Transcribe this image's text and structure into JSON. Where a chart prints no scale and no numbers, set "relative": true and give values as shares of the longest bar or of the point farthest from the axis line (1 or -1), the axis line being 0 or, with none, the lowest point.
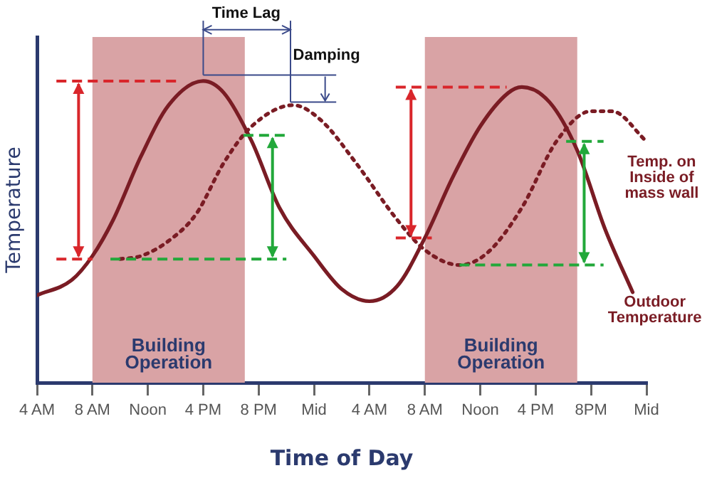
{
  "chart_data": {
    "type": "line",
    "xlabel": "Time of Day",
    "ylabel": "Temperature",
    "relative": true,
    "xlim": [
      "--01-01T04:00",
      "--01-03T00:00"
    ],
    "xticks": [
      {
        "value": "--01-01T04:00",
        "label": "4 AM"
      },
      {
        "value": "--01-01T08:00",
        "label": "8 AM"
      },
      {
        "value": "--01-01T12:00",
        "label": "Noon"
      },
      {
        "value": "--01-01T16:00",
        "label": "4 PM"
      },
      {
        "value": "--01-01T20:00",
        "label": "8 PM"
      },
      {
        "value": "--01-02T00:00",
        "label": "Mid"
      },
      {
        "value": "--01-02T04:00",
        "label": "4 AM"
      },
      {
        "value": "--01-02T08:00",
        "label": "8 AM"
      },
      {
        "value": "--01-02T12:00",
        "label": "Noon"
      },
      {
        "value": "--01-02T16:00",
        "label": "4 PM"
      },
      {
        "value": "--01-02T20:00",
        "label": "8PM"
      },
      {
        "value": "--01-03T00:00",
        "label": "Mid"
      }
    ],
    "series": [
      {
        "name": "Outdoor Temperature",
        "color": "#7a1c24",
        "line_style": "solid",
        "x": [
          "--01-01T04:00",
          "--01-01T06:30",
          "--01-01T08:00",
          "--01-01T09:30",
          "--01-01T11:30",
          "--01-01T13:30",
          "--01-01T16:00",
          "--01-01T17:30",
          "--01-01T19:30",
          "--01-01T21:30",
          "--01-02T00:00",
          "--01-02T02:00",
          "--01-02T04:00",
          "--01-02T06:00",
          "--01-02T08:00",
          "--01-02T10:00",
          "--01-02T12:00",
          "--01-02T14:00",
          "--01-02T15:00",
          "--01-02T17:00",
          "--01-02T19:00",
          "--01-02T21:00",
          "--01-02T23:00"
        ],
        "values": [
          0.29,
          0.34,
          0.42,
          0.54,
          0.75,
          0.92,
          1.0,
          0.96,
          0.8,
          0.58,
          0.42,
          0.31,
          0.27,
          0.32,
          0.48,
          0.68,
          0.85,
          0.96,
          0.98,
          0.93,
          0.77,
          0.51,
          0.3
        ]
      },
      {
        "name": "Temp. on Inside of mass wall",
        "color": "#7a1c24",
        "line_style": "dotted",
        "x": [
          "--01-01T10:00",
          "--01-01T11:30",
          "--01-01T13:30",
          "--01-01T15:30",
          "--01-01T17:30",
          "--01-01T19:30",
          "--01-01T22:30",
          "--01-02T00:30",
          "--01-02T03:00",
          "--01-02T06:00",
          "--01-02T08:00",
          "--01-02T10:30",
          "--01-02T12:30",
          "--01-02T15:00",
          "--01-02T17:30",
          "--01-02T20:00",
          "--01-02T21:30",
          "--01-03T00:00"
        ],
        "values": [
          0.41,
          0.42,
          0.47,
          0.56,
          0.73,
          0.85,
          0.92,
          0.87,
          0.73,
          0.54,
          0.44,
          0.39,
          0.43,
          0.58,
          0.8,
          0.9,
          0.9,
          0.8
        ]
      }
    ],
    "bands": [
      {
        "axis": "x",
        "from": "--01-01T08:00",
        "to": "--01-01T19:00",
        "label": "Building Operation",
        "color": "#d9a3a5"
      },
      {
        "axis": "x",
        "from": "--01-02T08:00",
        "to": "--01-02T19:00",
        "label": "Building Operation",
        "color": "#d9a3a5"
      }
    ],
    "annotations": [
      "Time Lag",
      "Damping"
    ],
    "grid": false,
    "legend": false,
    "marker": "none"
  }
}
